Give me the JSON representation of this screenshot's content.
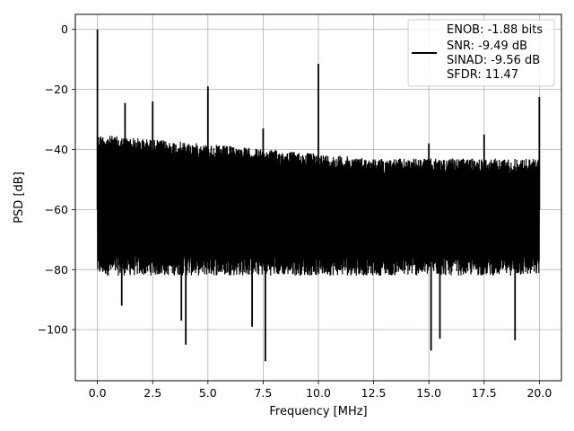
{
  "chart_data": {
    "type": "line",
    "title": "",
    "xlabel": "Frequency [MHz]",
    "ylabel": "PSD [dB]",
    "xlim": [
      -1.0,
      21.0
    ],
    "ylim": [
      -117,
      5
    ],
    "grid": true,
    "legend_placement": "top-right",
    "x_ticks": [
      0.0,
      2.5,
      5.0,
      7.5,
      10.0,
      12.5,
      15.0,
      17.5,
      20.0
    ],
    "x_tick_labels": [
      "0.0",
      "2.5",
      "5.0",
      "7.5",
      "10.0",
      "12.5",
      "15.0",
      "17.5",
      "20.0"
    ],
    "y_ticks": [
      0,
      -20,
      -40,
      -60,
      -80,
      -100
    ],
    "y_tick_labels": [
      "0",
      "−20",
      "−40",
      "−60",
      "−80",
      "−100"
    ],
    "series": [
      {
        "legend_lines": [
          "ENOB: -1.88 bits",
          "SNR: -9.49 dB",
          "SINAD: -9.56 dB",
          "SFDR: 11.47"
        ],
        "color": "#000000",
        "noise_floor_upper_db": [
          -35,
          -43
        ],
        "noise_floor_lower_db": [
          -82,
          -82
        ],
        "peaks": [
          {
            "x": 0.0,
            "y": 0.0
          },
          {
            "x": 1.25,
            "y": -24.5
          },
          {
            "x": 2.5,
            "y": -24.0
          },
          {
            "x": 5.0,
            "y": -19.0
          },
          {
            "x": 7.5,
            "y": -33.0
          },
          {
            "x": 10.0,
            "y": -11.5
          },
          {
            "x": 15.0,
            "y": -38.0
          },
          {
            "x": 17.5,
            "y": -35.0
          },
          {
            "x": 20.0,
            "y": -22.5
          }
        ],
        "dips": [
          {
            "x": 1.1,
            "y": -92
          },
          {
            "x": 3.8,
            "y": -97
          },
          {
            "x": 4.0,
            "y": -105
          },
          {
            "x": 7.0,
            "y": -99
          },
          {
            "x": 7.6,
            "y": -110.5
          },
          {
            "x": 15.1,
            "y": -107
          },
          {
            "x": 15.5,
            "y": -103
          },
          {
            "x": 18.9,
            "y": -103.5
          }
        ]
      }
    ]
  }
}
